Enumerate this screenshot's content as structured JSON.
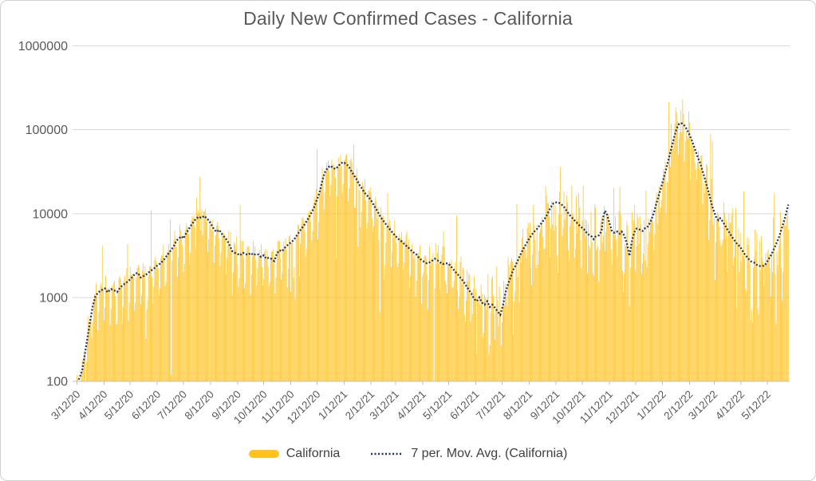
{
  "chart_data": {
    "type": "bar",
    "title": "Daily New Confirmed Cases - California",
    "y_axis": {
      "scale": "log",
      "min": 100,
      "max": 1000000,
      "ticks": [
        100,
        1000,
        10000,
        100000,
        1000000
      ],
      "tick_labels": [
        "100",
        "1000",
        "10000",
        "100000",
        "1000000"
      ],
      "grid": true
    },
    "x_axis": {
      "tick_labels": [
        "3/12/20",
        "4/12/20",
        "5/12/20",
        "6/12/20",
        "7/12/20",
        "8/12/20",
        "9/12/20",
        "10/12/20",
        "11/12/20",
        "12/12/20",
        "1/12/21",
        "2/12/21",
        "3/12/21",
        "4/12/21",
        "5/12/21",
        "6/12/21",
        "7/12/21",
        "8/12/21",
        "9/12/21",
        "10/12/21",
        "11/12/21",
        "12/12/21",
        "1/12/22",
        "2/12/22",
        "3/12/22",
        "4/12/22",
        "5/12/22"
      ],
      "tick_day_offsets": [
        0,
        31,
        61,
        92,
        122,
        153,
        184,
        214,
        245,
        275,
        306,
        337,
        365,
        396,
        426,
        457,
        487,
        518,
        549,
        579,
        610,
        640,
        671,
        702,
        730,
        761,
        791
      ],
      "total_days": 816,
      "label_rotation_deg": -45
    },
    "legend_position": "bottom",
    "series": [
      {
        "name": "California",
        "type": "bar",
        "color": "#FFC21E"
      },
      {
        "name": "7 per. Mov. Avg. (California)",
        "type": "dotted-line",
        "color": "#1F3A68",
        "moving_avg_window": 7,
        "waypoints": [
          [
            0,
            95
          ],
          [
            3,
            110
          ],
          [
            6,
            135
          ],
          [
            9,
            210
          ],
          [
            12,
            330
          ],
          [
            15,
            520
          ],
          [
            18,
            780
          ],
          [
            21,
            1020
          ],
          [
            24,
            1140
          ],
          [
            28,
            1220
          ],
          [
            32,
            1280
          ],
          [
            35,
            1150
          ],
          [
            39,
            1260
          ],
          [
            43,
            1210
          ],
          [
            46,
            1160
          ],
          [
            50,
            1330
          ],
          [
            54,
            1440
          ],
          [
            58,
            1540
          ],
          [
            61,
            1650
          ],
          [
            64,
            1780
          ],
          [
            67,
            1930
          ],
          [
            70,
            1960
          ],
          [
            73,
            1730
          ],
          [
            76,
            1790
          ],
          [
            80,
            1900
          ],
          [
            84,
            2060
          ],
          [
            88,
            2200
          ],
          [
            92,
            2400
          ],
          [
            96,
            2560
          ],
          [
            100,
            2850
          ],
          [
            104,
            3250
          ],
          [
            108,
            3700
          ],
          [
            111,
            4130
          ],
          [
            114,
            4750
          ],
          [
            117,
            5100
          ],
          [
            120,
            5350
          ],
          [
            122,
            5050
          ],
          [
            125,
            5800
          ],
          [
            128,
            6500
          ],
          [
            131,
            7300
          ],
          [
            134,
            8100
          ],
          [
            137,
            8800
          ],
          [
            140,
            9200
          ],
          [
            142,
            8900
          ],
          [
            144,
            9100
          ],
          [
            146,
            9400
          ],
          [
            148,
            8900
          ],
          [
            151,
            8300
          ],
          [
            154,
            7400
          ],
          [
            157,
            6500
          ],
          [
            160,
            6050
          ],
          [
            163,
            6400
          ],
          [
            166,
            5750
          ],
          [
            169,
            5250
          ],
          [
            172,
            4800
          ],
          [
            175,
            4150
          ],
          [
            178,
            3560
          ],
          [
            181,
            3400
          ],
          [
            184,
            3300
          ],
          [
            187,
            3180
          ],
          [
            190,
            3420
          ],
          [
            193,
            3300
          ],
          [
            196,
            3220
          ],
          [
            199,
            3400
          ],
          [
            202,
            3200
          ],
          [
            205,
            3300
          ],
          [
            208,
            3250
          ],
          [
            211,
            3030
          ],
          [
            214,
            3180
          ],
          [
            217,
            2900
          ],
          [
            220,
            2980
          ],
          [
            223,
            2880
          ],
          [
            226,
            2720
          ],
          [
            229,
            3320
          ],
          [
            232,
            3650
          ],
          [
            235,
            3550
          ],
          [
            238,
            3900
          ],
          [
            241,
            4180
          ],
          [
            244,
            4430
          ],
          [
            248,
            4800
          ],
          [
            252,
            5500
          ],
          [
            256,
            6350
          ],
          [
            260,
            7200
          ],
          [
            263,
            8100
          ],
          [
            266,
            9100
          ],
          [
            269,
            10400
          ],
          [
            272,
            12100
          ],
          [
            275,
            14700
          ],
          [
            278,
            18000
          ],
          [
            281,
            24500
          ],
          [
            284,
            31000
          ],
          [
            287,
            35000
          ],
          [
            290,
            37200
          ],
          [
            293,
            35500
          ],
          [
            296,
            34000
          ],
          [
            299,
            36200
          ],
          [
            302,
            39500
          ],
          [
            305,
            41000
          ],
          [
            308,
            39400
          ],
          [
            311,
            37000
          ],
          [
            314,
            32600
          ],
          [
            317,
            29000
          ],
          [
            320,
            26000
          ],
          [
            323,
            22500
          ],
          [
            326,
            20300
          ],
          [
            329,
            18000
          ],
          [
            332,
            16600
          ],
          [
            335,
            15300
          ],
          [
            338,
            13800
          ],
          [
            341,
            12100
          ],
          [
            344,
            10800
          ],
          [
            347,
            9400
          ],
          [
            350,
            8500
          ],
          [
            353,
            7700
          ],
          [
            356,
            7000
          ],
          [
            359,
            6400
          ],
          [
            362,
            5850
          ],
          [
            365,
            5400
          ],
          [
            368,
            5000
          ],
          [
            371,
            4750
          ],
          [
            374,
            4430
          ],
          [
            377,
            4150
          ],
          [
            380,
            3900
          ],
          [
            383,
            3630
          ],
          [
            386,
            3420
          ],
          [
            389,
            3250
          ],
          [
            392,
            2950
          ],
          [
            395,
            2780
          ],
          [
            398,
            2650
          ],
          [
            401,
            2550
          ],
          [
            404,
            2620
          ],
          [
            407,
            2740
          ],
          [
            410,
            2900
          ],
          [
            413,
            2780
          ],
          [
            416,
            2620
          ],
          [
            419,
            2500
          ],
          [
            422,
            2530
          ],
          [
            425,
            2560
          ],
          [
            428,
            2380
          ],
          [
            431,
            2180
          ],
          [
            434,
            2000
          ],
          [
            437,
            1840
          ],
          [
            440,
            1680
          ],
          [
            443,
            1550
          ],
          [
            446,
            1370
          ],
          [
            449,
            1230
          ],
          [
            452,
            1110
          ],
          [
            455,
            960
          ],
          [
            458,
            900
          ],
          [
            461,
            1000
          ],
          [
            464,
            870
          ],
          [
            467,
            820
          ],
          [
            470,
            900
          ],
          [
            473,
            770
          ],
          [
            476,
            820
          ],
          [
            479,
            750
          ],
          [
            482,
            680
          ],
          [
            485,
            620
          ],
          [
            488,
            800
          ],
          [
            491,
            1140
          ],
          [
            494,
            1450
          ],
          [
            497,
            1760
          ],
          [
            500,
            2150
          ],
          [
            503,
            2450
          ],
          [
            506,
            2900
          ],
          [
            509,
            3400
          ],
          [
            512,
            3900
          ],
          [
            515,
            4400
          ],
          [
            518,
            5000
          ],
          [
            521,
            5600
          ],
          [
            524,
            6100
          ],
          [
            527,
            6550
          ],
          [
            530,
            7200
          ],
          [
            533,
            7900
          ],
          [
            536,
            8700
          ],
          [
            539,
            9800
          ],
          [
            542,
            11500
          ],
          [
            546,
            13300
          ],
          [
            550,
            13700
          ],
          [
            554,
            13200
          ],
          [
            558,
            12000
          ],
          [
            562,
            10400
          ],
          [
            566,
            9200
          ],
          [
            570,
            8300
          ],
          [
            575,
            7350
          ],
          [
            578,
            6850
          ],
          [
            581,
            6500
          ],
          [
            584,
            5900
          ],
          [
            587,
            5500
          ],
          [
            590,
            5300
          ],
          [
            592,
            4950
          ],
          [
            594,
            5300
          ],
          [
            598,
            5500
          ],
          [
            601,
            6200
          ],
          [
            603,
            9100
          ],
          [
            605,
            10800
          ],
          [
            607,
            10000
          ],
          [
            609,
            8400
          ],
          [
            611,
            7200
          ],
          [
            613,
            6100
          ],
          [
            616,
            5900
          ],
          [
            619,
            6100
          ],
          [
            622,
            5750
          ],
          [
            624,
            6100
          ],
          [
            627,
            5500
          ],
          [
            630,
            4400
          ],
          [
            633,
            3130
          ],
          [
            635,
            4200
          ],
          [
            637,
            5300
          ],
          [
            639,
            6100
          ],
          [
            641,
            6600
          ],
          [
            644,
            6500
          ],
          [
            648,
            6200
          ],
          [
            651,
            6700
          ],
          [
            654,
            7000
          ],
          [
            656,
            7600
          ],
          [
            658,
            8400
          ],
          [
            661,
            10200
          ],
          [
            663,
            12300
          ],
          [
            666,
            15800
          ],
          [
            669,
            20000
          ],
          [
            672,
            26000
          ],
          [
            675,
            34000
          ],
          [
            678,
            45000
          ],
          [
            681,
            60000
          ],
          [
            684,
            80000
          ],
          [
            687,
            103000
          ],
          [
            690,
            118000
          ],
          [
            693,
            119000
          ],
          [
            696,
            112000
          ],
          [
            699,
            100000
          ],
          [
            702,
            86000
          ],
          [
            705,
            72000
          ],
          [
            708,
            59000
          ],
          [
            711,
            48000
          ],
          [
            714,
            40000
          ],
          [
            719,
            27000
          ],
          [
            724,
            17500
          ],
          [
            728,
            12000
          ],
          [
            732,
            9200
          ],
          [
            735,
            8300
          ],
          [
            737,
            8800
          ],
          [
            740,
            8000
          ],
          [
            744,
            6800
          ],
          [
            748,
            5800
          ],
          [
            752,
            5000
          ],
          [
            756,
            4400
          ],
          [
            760,
            4000
          ],
          [
            764,
            3400
          ],
          [
            768,
            3000
          ],
          [
            772,
            2700
          ],
          [
            776,
            2600
          ],
          [
            780,
            2400
          ],
          [
            784,
            2350
          ],
          [
            788,
            2400
          ],
          [
            792,
            2800
          ],
          [
            796,
            3300
          ],
          [
            800,
            4100
          ],
          [
            804,
            5100
          ],
          [
            808,
            6900
          ],
          [
            811,
            8800
          ],
          [
            813,
            10500
          ],
          [
            815,
            12800
          ]
        ]
      }
    ],
    "bar_synthesis": {
      "note": "daily bars scatter around the 7-day moving average with weekly reporting dips and occasional outlier spikes/drops",
      "seed": 1337,
      "weekday_factors": [
        1.15,
        1.2,
        0.92,
        0.4,
        0.55,
        1.08,
        1.2
      ],
      "sigma_base": 0.13,
      "sigma_ramp_start_day": 340,
      "sigma_ramp_per_day": 0.0016,
      "sigma_max": 0.45,
      "spike_prob": 0.025,
      "spike_mult": [
        2.1,
        4.6
      ],
      "drop_prob": 0.022,
      "drop_mult": [
        0.03,
        0.23
      ],
      "value_clamp": [
        100,
        240000
      ]
    },
    "grid_color": "#D9D9D9",
    "axis_color": "#BFBFBF",
    "text_color": "#595959"
  }
}
